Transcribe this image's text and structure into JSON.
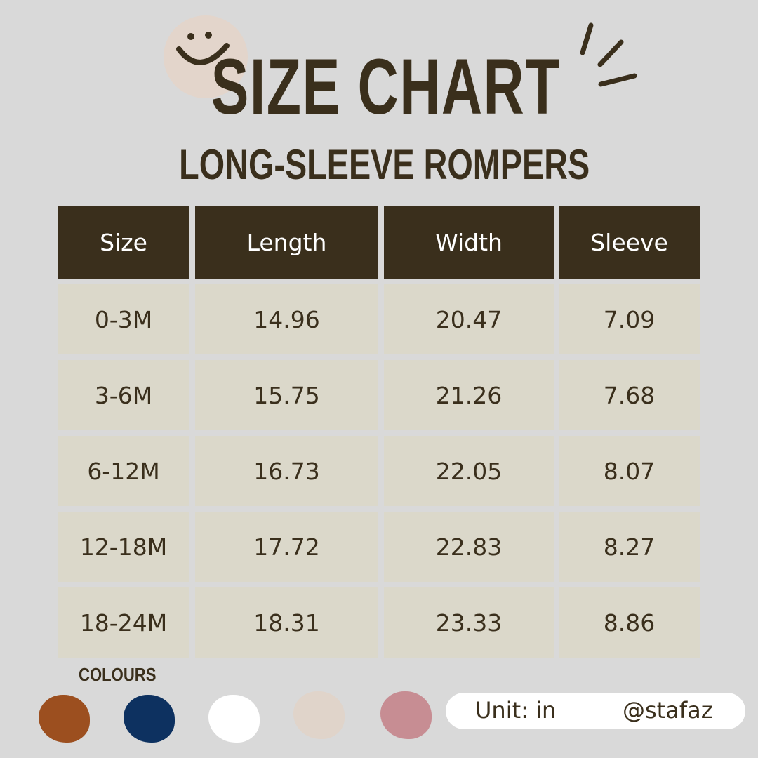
{
  "header": {
    "title": "SIZE CHART",
    "subtitle": "LONG-SLEEVE ROMPERS"
  },
  "table": {
    "columns": [
      "Size",
      "Length",
      "Width",
      "Sleeve"
    ],
    "rows": [
      [
        "0-3M",
        "14.96",
        "20.47",
        "7.09"
      ],
      [
        "3-6M",
        "15.75",
        "21.26",
        "7.68"
      ],
      [
        "6-12M",
        "16.73",
        "22.05",
        "8.07"
      ],
      [
        "12-18M",
        "17.72",
        "22.83",
        "8.27"
      ],
      [
        "18-24M",
        "18.31",
        "23.33",
        "8.86"
      ]
    ]
  },
  "colours": {
    "label": "COLOURS",
    "swatches": [
      "#9c4f1f",
      "#0d3160",
      "#ffffff",
      "#e0d4ca",
      "#c78d93"
    ]
  },
  "footer": {
    "unit": "Unit: in",
    "handle": "@stafaz"
  },
  "theme": {
    "background": "#d9d9d9",
    "dark": "#3a2f1c",
    "cell": "#dbd8ca",
    "smiley_bg": "#e3d5cb"
  }
}
